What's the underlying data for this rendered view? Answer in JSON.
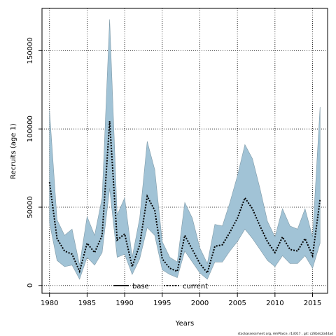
{
  "chart_data": {
    "type": "area",
    "title": "",
    "xlabel": "Years",
    "ylabel": "Recruits (age 1)",
    "xlim": [
      1979,
      2017
    ],
    "ylim": [
      -5000,
      177000
    ],
    "xticks": [
      1980,
      1985,
      1990,
      1995,
      2000,
      2005,
      2010,
      2015
    ],
    "yticks": [
      0,
      50000,
      100000,
      150000
    ],
    "grid": true,
    "x": [
      1980,
      1981,
      1982,
      1983,
      1984,
      1985,
      1986,
      1987,
      1988,
      1989,
      1990,
      1991,
      1992,
      1993,
      1994,
      1995,
      1996,
      1997,
      1998,
      1999,
      2000,
      2001,
      2002,
      2003,
      2004,
      2005,
      2006,
      2007,
      2008,
      2009,
      2010,
      2011,
      2012,
      2013,
      2014,
      2015,
      2016
    ],
    "series": [
      {
        "name": "current",
        "line_style": "dotted",
        "color": "#000000",
        "values": [
          66000,
          30000,
          22000,
          20000,
          9000,
          27000,
          21000,
          32000,
          105000,
          29000,
          33000,
          12000,
          26000,
          57000,
          48000,
          17000,
          11000,
          9000,
          32000,
          23000,
          14000,
          8000,
          25000,
          26000,
          34000,
          43000,
          56000,
          49000,
          38000,
          28000,
          21000,
          31000,
          23000,
          22000,
          30000,
          19000,
          55000
        ],
        "band_upper": [
          112000,
          42000,
          32000,
          36000,
          13000,
          44000,
          32000,
          56000,
          170000,
          45000,
          56000,
          18000,
          43000,
          92000,
          74000,
          28000,
          18000,
          15000,
          53000,
          43000,
          24000,
          14000,
          39000,
          38000,
          53000,
          70000,
          90000,
          81000,
          62000,
          41000,
          31000,
          49000,
          38000,
          36000,
          49000,
          31000,
          114000
        ],
        "band_lower": [
          40000,
          16000,
          12000,
          13000,
          4000,
          18000,
          13000,
          21000,
          62000,
          18000,
          20000,
          7000,
          17000,
          37000,
          32000,
          10000,
          7000,
          5000,
          22000,
          15000,
          8000,
          4000,
          15000,
          15000,
          22000,
          28000,
          36000,
          30000,
          23000,
          16000,
          12000,
          19000,
          14000,
          14000,
          19000,
          11000,
          27000
        ],
        "band_color": "#a1c3d6"
      }
    ],
    "legend": {
      "placement": "bottom-center",
      "entries": [
        {
          "label": "base",
          "line_style": "solid"
        },
        {
          "label": "current",
          "line_style": "dotted"
        }
      ]
    },
    "footnote": "stockassessment.org, AmPlaice, r13017 , git: c28bdc2a44ad"
  }
}
